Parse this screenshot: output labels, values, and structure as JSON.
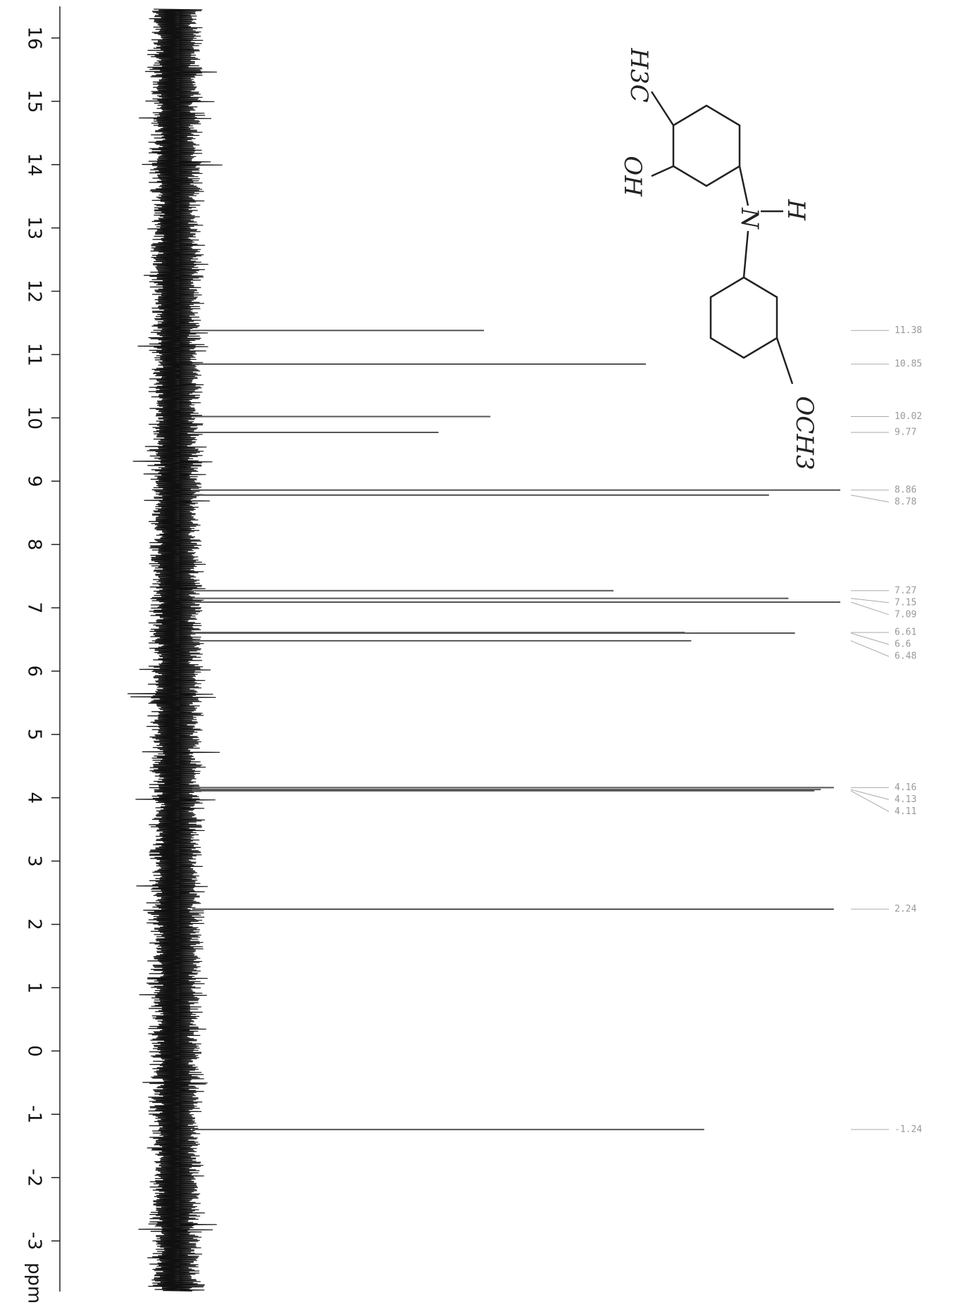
{
  "chart_data": {
    "type": "stick",
    "x_label": "ppm",
    "xlim": [
      16.5,
      -3.8
    ],
    "xticks": [
      16,
      15,
      14,
      13,
      12,
      11,
      10,
      9,
      8,
      7,
      6,
      5,
      4,
      3,
      2,
      1,
      0,
      -1,
      -2,
      -3
    ],
    "x": [
      11.38,
      10.85,
      10.02,
      9.77,
      8.86,
      8.78,
      7.27,
      7.15,
      7.09,
      6.61,
      6.6,
      6.48,
      4.16,
      4.13,
      4.11,
      2.24,
      -1.24
    ],
    "values": [
      45,
      70,
      46,
      38,
      100,
      89,
      65,
      92,
      100,
      76,
      93,
      77,
      99,
      97,
      96,
      99,
      79
    ],
    "ylim": [
      0,
      100
    ],
    "color": "#555555",
    "annotations": [
      "H3C",
      "OH",
      "H",
      "N",
      "OCH3"
    ]
  }
}
